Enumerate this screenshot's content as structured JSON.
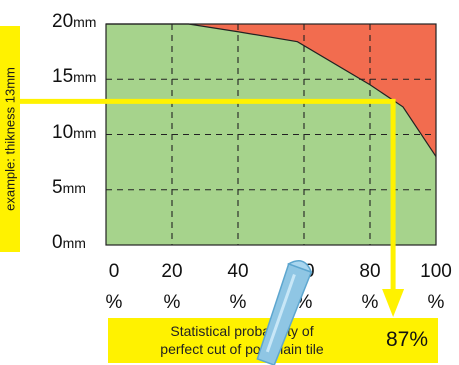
{
  "chart_data": {
    "type": "area",
    "title": "",
    "xlabel": "",
    "ylabel": "",
    "x_ticks": [
      {
        "value": 0,
        "label": "0",
        "unit": "%"
      },
      {
        "value": 20,
        "label": "20",
        "unit": "%"
      },
      {
        "value": 40,
        "label": "40",
        "unit": "%"
      },
      {
        "value": 60,
        "label": "60",
        "unit": "%"
      },
      {
        "value": 80,
        "label": "80",
        "unit": "%"
      },
      {
        "value": 100,
        "label": "100",
        "unit": "%"
      }
    ],
    "y_ticks": [
      {
        "value": 0,
        "label": "0",
        "unit": "mm"
      },
      {
        "value": 5,
        "label": "5",
        "unit": "mm"
      },
      {
        "value": 10,
        "label": "10",
        "unit": "mm"
      },
      {
        "value": 15,
        "label": "15",
        "unit": "mm"
      },
      {
        "value": 20,
        "label": "20",
        "unit": "mm"
      }
    ],
    "xlim": [
      0,
      100
    ],
    "ylim": [
      0,
      20
    ],
    "grid": true,
    "boundary": {
      "x": [
        0,
        25,
        40,
        58,
        80,
        90,
        100
      ],
      "y": [
        20,
        20,
        19.3,
        18.4,
        14.5,
        12.5,
        8
      ]
    },
    "colors": {
      "below": "#a6d38c",
      "above": "#f26c4f",
      "guide": "#fff200"
    },
    "example": {
      "thickness_mm": 13,
      "probability_pct": 87
    }
  },
  "annotation": {
    "side_label": "example: thikness 13mm",
    "result_text_line1": "Statistical probability of",
    "result_text_line2": "perfect cut of porcelain tile",
    "result_value": "87%"
  }
}
